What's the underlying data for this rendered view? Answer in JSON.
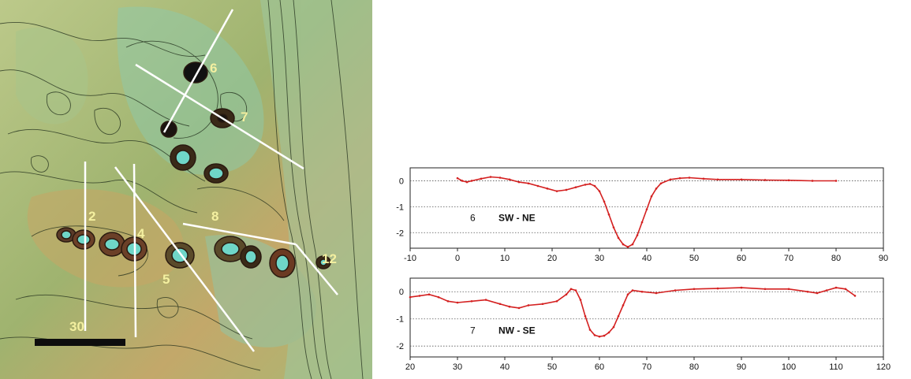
{
  "map": {
    "profile_labels": [
      "2",
      "4",
      "5",
      "6",
      "7",
      "8",
      "12",
      "30"
    ],
    "colors": {
      "base_light": "#b9c98a",
      "base_dark": "#7e9a52",
      "crater": "#6fd6c8",
      "lines": "#ffffff",
      "labels": "#f4f0a0"
    }
  },
  "chart_data": [
    {
      "type": "line",
      "title": "",
      "profile_number": "6",
      "direction": "SW - NE",
      "xlim": [
        -10,
        90
      ],
      "ylim": [
        -2.6,
        0.5
      ],
      "xticks": [
        -10,
        0,
        10,
        20,
        30,
        40,
        50,
        60,
        70,
        80,
        90
      ],
      "yticks": [
        0,
        -1,
        -2
      ],
      "grid": "horizontal dotted",
      "color": "#d42020",
      "x": [
        0,
        1,
        2,
        3,
        5,
        7,
        9,
        11,
        13,
        15,
        17,
        19,
        21,
        23,
        25,
        27,
        28,
        29,
        30,
        31,
        32,
        33,
        34,
        35,
        36,
        37,
        38,
        39,
        40,
        41,
        42,
        43,
        45,
        47,
        49,
        52,
        55,
        60,
        65,
        70,
        75,
        80
      ],
      "y": [
        0.1,
        0.0,
        -0.05,
        0.0,
        0.08,
        0.15,
        0.12,
        0.05,
        -0.05,
        -0.1,
        -0.2,
        -0.3,
        -0.4,
        -0.35,
        -0.25,
        -0.15,
        -0.12,
        -0.2,
        -0.4,
        -0.8,
        -1.3,
        -1.8,
        -2.2,
        -2.45,
        -2.55,
        -2.45,
        -2.1,
        -1.6,
        -1.1,
        -0.6,
        -0.3,
        -0.1,
        0.05,
        0.1,
        0.12,
        0.08,
        0.05,
        0.05,
        0.03,
        0.02,
        0.0,
        0.0
      ]
    },
    {
      "type": "line",
      "title": "",
      "profile_number": "7",
      "direction": "NW - SE",
      "xlim": [
        20,
        120
      ],
      "ylim": [
        -2.4,
        0.5
      ],
      "xticks": [
        20,
        30,
        40,
        50,
        60,
        70,
        80,
        90,
        100,
        110,
        120
      ],
      "yticks": [
        0,
        -1,
        -2
      ],
      "grid": "horizontal dotted",
      "color": "#d42020",
      "x": [
        20,
        22,
        24,
        26,
        28,
        30,
        33,
        36,
        39,
        41,
        43,
        45,
        48,
        51,
        53,
        54,
        55,
        56,
        57,
        58,
        59,
        60,
        61,
        62,
        63,
        64,
        65,
        66,
        67,
        69,
        72,
        76,
        80,
        85,
        90,
        95,
        100,
        104,
        106,
        108,
        110,
        112,
        114
      ],
      "y": [
        -0.2,
        -0.15,
        -0.1,
        -0.2,
        -0.35,
        -0.4,
        -0.35,
        -0.3,
        -0.45,
        -0.55,
        -0.6,
        -0.5,
        -0.45,
        -0.35,
        -0.1,
        0.1,
        0.05,
        -0.3,
        -0.9,
        -1.4,
        -1.6,
        -1.65,
        -1.62,
        -1.5,
        -1.3,
        -0.9,
        -0.5,
        -0.1,
        0.05,
        0.0,
        -0.05,
        0.05,
        0.1,
        0.12,
        0.15,
        0.1,
        0.1,
        0.0,
        -0.05,
        0.05,
        0.15,
        0.1,
        -0.15
      ]
    }
  ]
}
